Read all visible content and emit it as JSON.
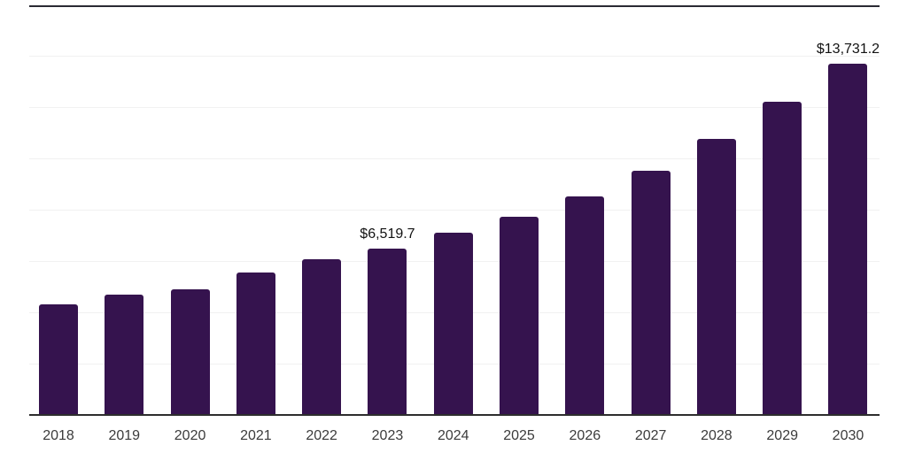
{
  "chart_data": {
    "type": "bar",
    "title": "",
    "xlabel": "",
    "ylabel": "",
    "categories": [
      "2018",
      "2019",
      "2020",
      "2021",
      "2022",
      "2023",
      "2024",
      "2025",
      "2026",
      "2027",
      "2028",
      "2029",
      "2030"
    ],
    "values": [
      4340,
      4720,
      4940,
      5580,
      6110,
      6519.7,
      7140,
      7750,
      8560,
      9540,
      10800,
      12240,
      13731.2
    ],
    "labels": [
      "",
      "",
      "",
      "",
      "",
      "$6,519.7",
      "",
      "",
      "",
      "",
      "",
      "",
      "$13,731.2"
    ],
    "ylim": [
      0,
      16000
    ],
    "gridline_step": 2000,
    "grid": "horizontal",
    "legend": "none",
    "bar_orientation": "vertical"
  },
  "colors": {
    "bar": "#35134E",
    "axis_line": "#2d2d2d",
    "top_rule": "#2a2a33",
    "gridline": "#f1f1f1",
    "category_label": "#3b3b3b",
    "value_label": "#121212",
    "background": "#ffffff"
  }
}
